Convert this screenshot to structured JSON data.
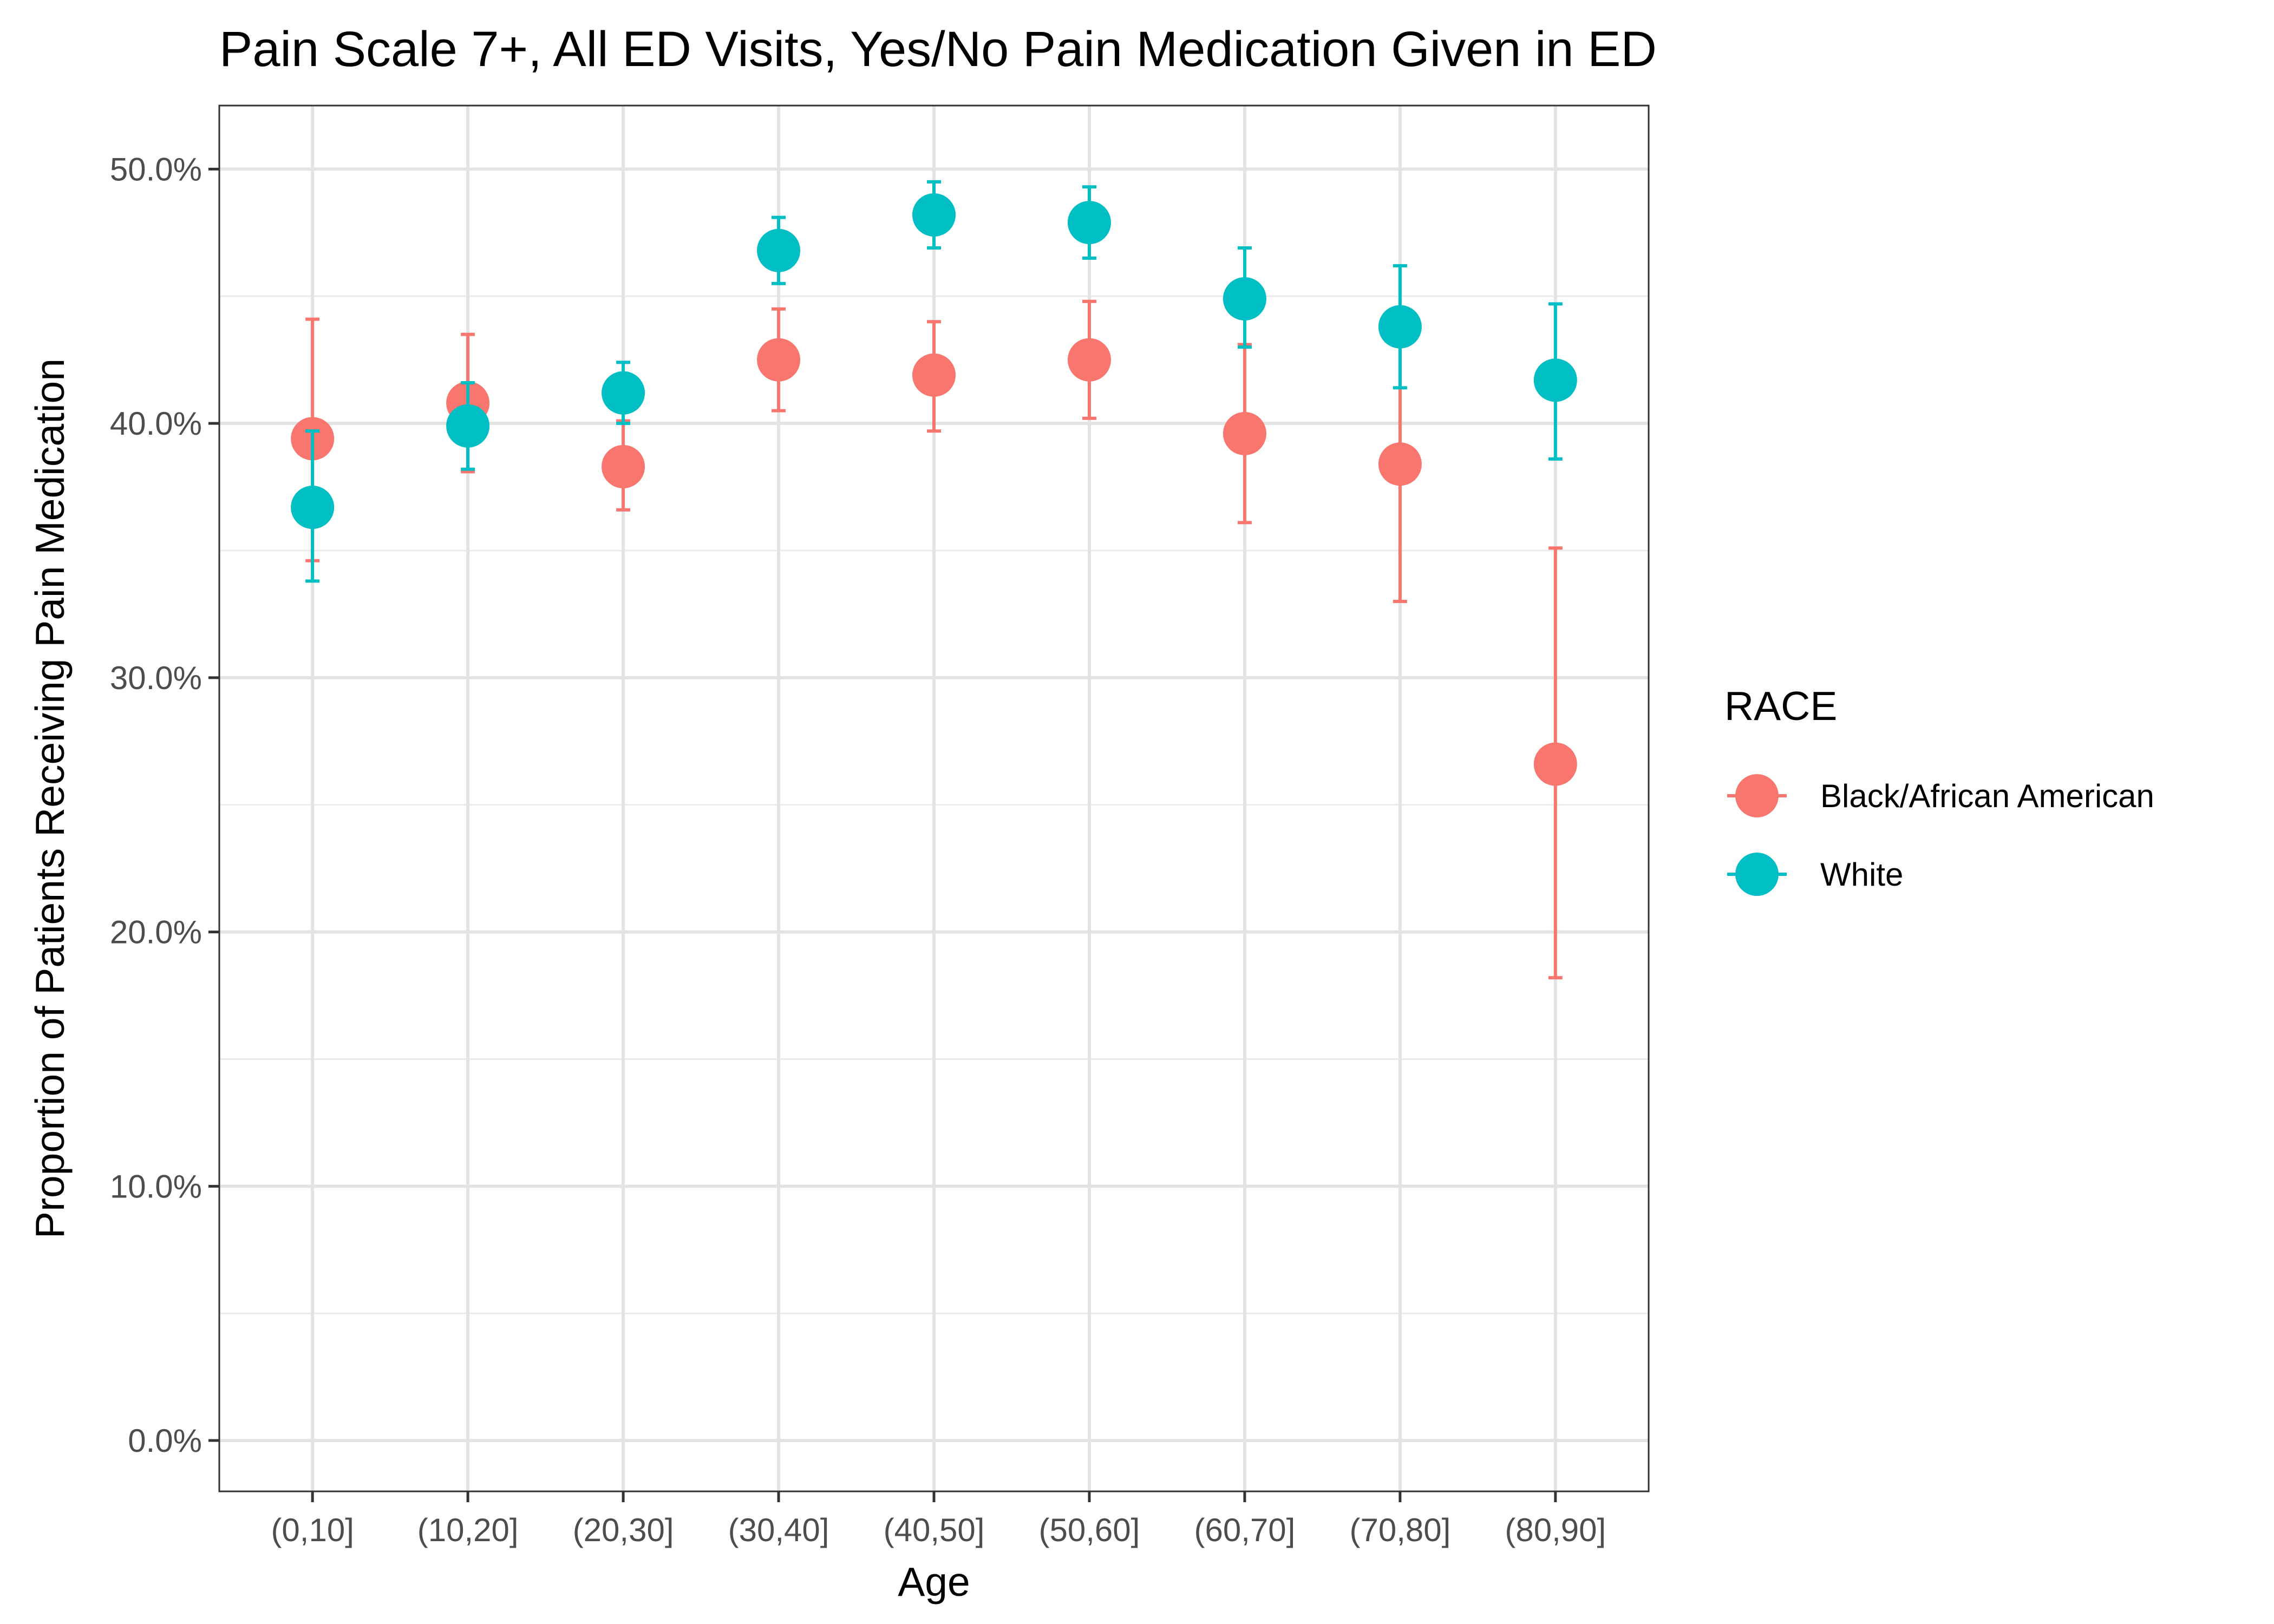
{
  "chart_data": {
    "type": "scatter",
    "title": "Pain Scale 7+, All ED Visits, Yes/No Pain Medication Given in ED",
    "xlabel": "Age",
    "ylabel": "Proportion of Patients Receiving Pain Medication",
    "categories": [
      "(0,10]",
      "(10,20]",
      "(20,30]",
      "(30,40]",
      "(40,50]",
      "(50,60]",
      "(60,70]",
      "(70,80]",
      "(80,90]"
    ],
    "ylim": [
      -0.02,
      0.525
    ],
    "y_ticks": [
      0.0,
      0.1,
      0.2,
      0.3,
      0.4,
      0.5
    ],
    "y_tick_labels": [
      "0.0%",
      "10.0%",
      "20.0%",
      "30.0%",
      "40.0%",
      "50.0%"
    ],
    "grid": true,
    "legend_title": "RACE",
    "legend_position": "right",
    "series": [
      {
        "name": "Black/African American",
        "color": "#F8766D",
        "values": [
          0.394,
          0.408,
          0.383,
          0.425,
          0.419,
          0.425,
          0.396,
          0.384,
          0.266
        ],
        "lower": [
          0.346,
          0.381,
          0.366,
          0.405,
          0.397,
          0.402,
          0.361,
          0.33,
          0.182
        ],
        "upper": [
          0.441,
          0.435,
          0.401,
          0.445,
          0.44,
          0.448,
          0.431,
          0.439,
          0.351
        ]
      },
      {
        "name": "White",
        "color": "#00BFC4",
        "values": [
          0.367,
          0.399,
          0.412,
          0.468,
          0.482,
          0.479,
          0.449,
          0.438,
          0.417
        ],
        "lower": [
          0.338,
          0.382,
          0.4,
          0.455,
          0.469,
          0.465,
          0.43,
          0.414,
          0.386
        ],
        "upper": [
          0.397,
          0.416,
          0.424,
          0.481,
          0.495,
          0.493,
          0.469,
          0.462,
          0.447
        ]
      }
    ]
  }
}
